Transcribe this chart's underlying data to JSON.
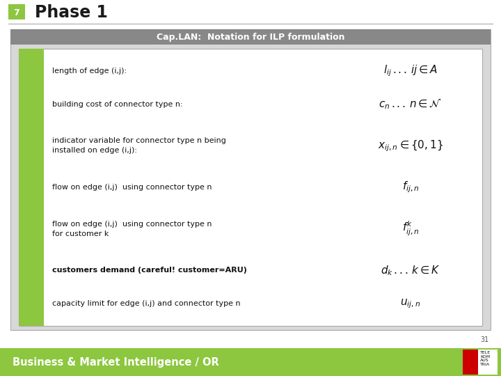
{
  "title_number": "7",
  "title_text": "Phase 1",
  "title_number_bg": "#8dc63f",
  "header_text": "Cap.LAN:  Notation for ILP formulation",
  "header_bg": "#888888",
  "header_text_color": "#ffffff",
  "slide_bg": "#ffffff",
  "outer_box_bg": "#d8d8d8",
  "outer_box_border": "#aaaaaa",
  "inner_box_bg": "#ffffff",
  "inner_box_border": "#aaaaaa",
  "green_bar_color": "#8dc63f",
  "top_line_color": "#aaaaaa",
  "bottom_bar_bg": "#8dc63f",
  "bottom_bar_text": "Business & Market Intelligence / OR",
  "bottom_bar_text_color": "#ffffff",
  "page_number": "31",
  "rows": [
    {
      "label": "length of edge (i,j):",
      "formula": "$l_{ij}\\,...\\,ij \\in A$",
      "multiline": false,
      "bold": false
    },
    {
      "label": "building cost of connector type n:",
      "formula": "$c_{n}\\,...\\,n \\in \\mathcal{N}$",
      "multiline": false,
      "bold": false
    },
    {
      "label": "indicator variable for connector type n being",
      "label2": "installed on edge (i,j):",
      "formula": "$x_{ij,n} \\in \\{0,1\\}$",
      "multiline": true,
      "bold": false
    },
    {
      "label": "flow on edge (i,j)  using connector type n",
      "formula": "$f_{ij,n}$",
      "multiline": false,
      "bold": false
    },
    {
      "label": "flow on edge (i,j)  using connector type n",
      "label2": "for customer k",
      "formula": "$f^{k}_{ij,n}$",
      "multiline": true,
      "bold": false
    },
    {
      "label": "customers demand (careful! customer=ARU)",
      "formula": "$d_{k}\\,...\\,k \\in K$",
      "multiline": false,
      "bold": true
    },
    {
      "label": "capacity limit for edge (i,j) and connector type n",
      "formula": "$u_{ij,n}$",
      "multiline": false,
      "bold": false
    }
  ]
}
